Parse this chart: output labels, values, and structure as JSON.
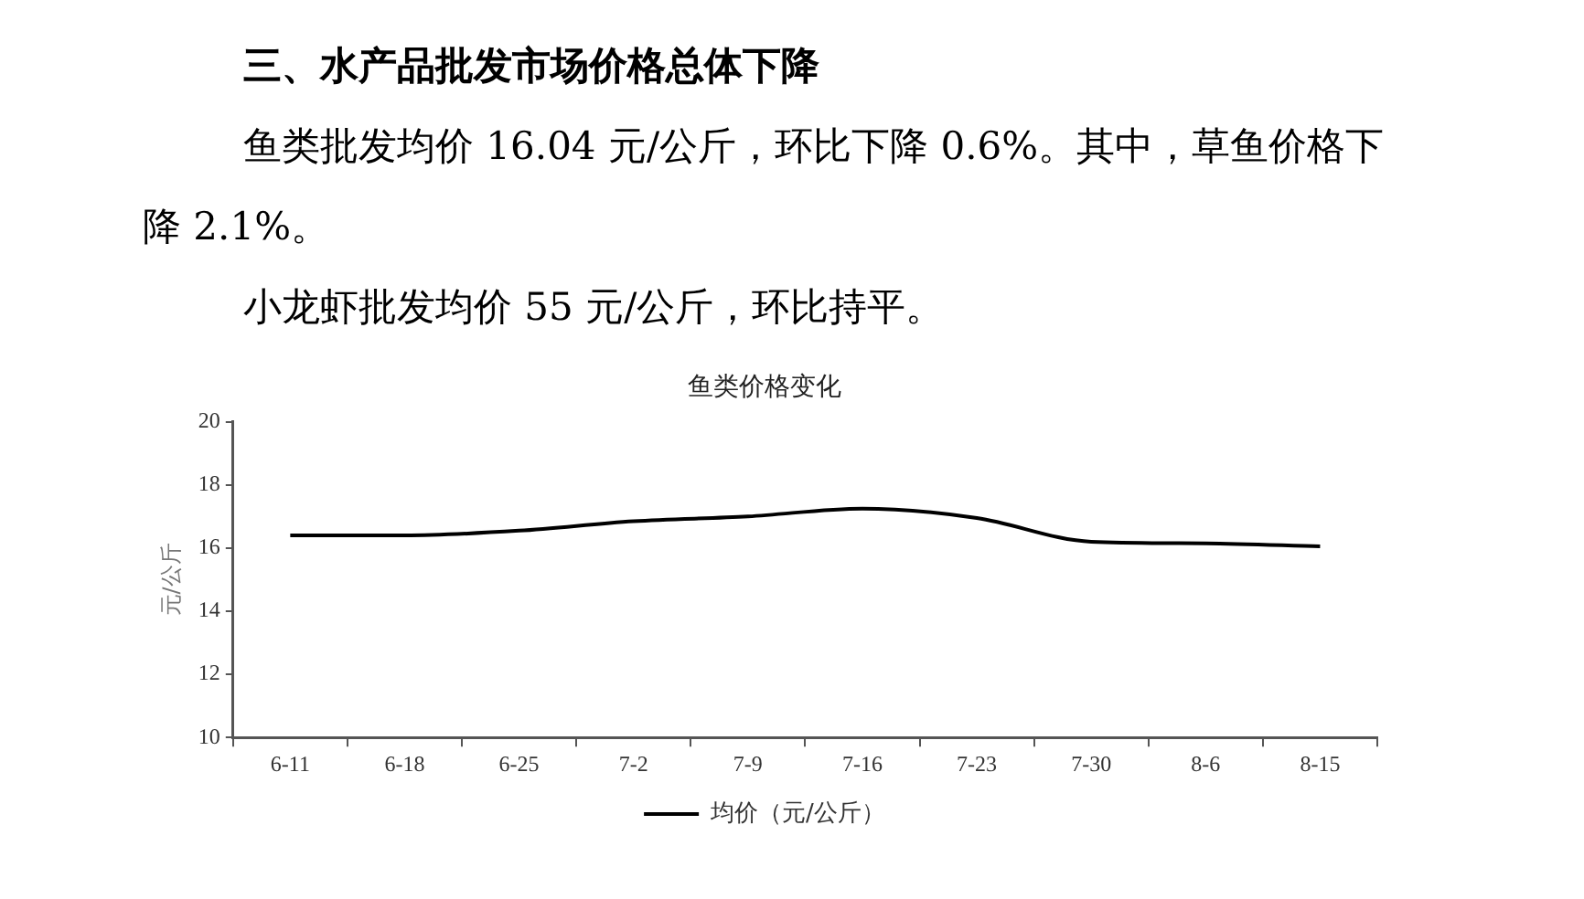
{
  "chart_data": {
    "type": "line",
    "title": "鱼类价格变化",
    "ylabel": "元/公斤",
    "annotations": [
      "三、水产品批发市场价格总体下降",
      "鱼类批发均价 16.04 元/公斤，环比下降 0.6%。其中，草鱼价格下降 2.1%。",
      "小龙虾批发均价 55 元/公斤，环比持平。"
    ],
    "categories": [
      "6-11",
      "6-18",
      "6-25",
      "7-2",
      "7-9",
      "7-16",
      "7-23",
      "7-30",
      "8-6",
      "8-15"
    ],
    "series": [
      {
        "name": "均价（元/公斤）",
        "color": "#000000",
        "values": [
          16.4,
          16.4,
          16.55,
          16.85,
          17.0,
          17.25,
          16.95,
          16.2,
          16.15,
          16.05
        ]
      }
    ],
    "ylim": [
      10,
      20
    ],
    "yticks": [
      10,
      12,
      14,
      16,
      18,
      20
    ],
    "grid": false,
    "legend": "bottom",
    "marker": "none",
    "line_style": "solid"
  }
}
